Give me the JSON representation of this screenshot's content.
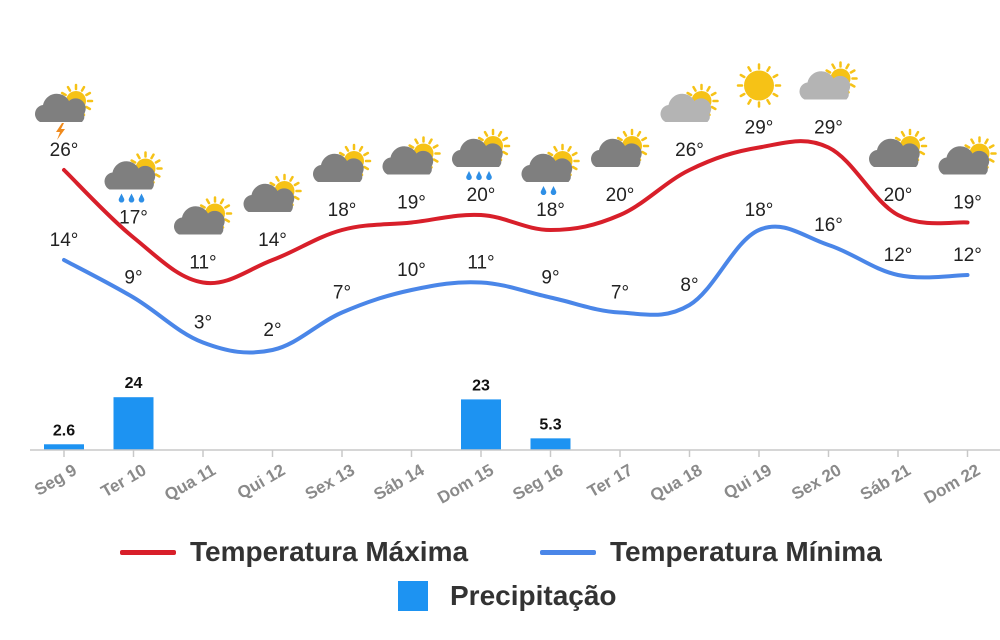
{
  "colors": {
    "max": "#d81f2a",
    "min": "#4a86e8",
    "precip": "#1d93f2",
    "cloud": "#7f7f7f",
    "cloud_light": "#b4b4b4",
    "sun": "#f6c216",
    "rain": "#2e8fe6",
    "lightning": "#f08a1c",
    "axis": "#c8c8c8"
  },
  "chart_data": {
    "type": "line",
    "categories": [
      "Seg 9",
      "Ter 10",
      "Qua 11",
      "Qui 12",
      "Sex 13",
      "Sáb 14",
      "Dom 15",
      "Seg 16",
      "Ter 17",
      "Qua 18",
      "Qui 19",
      "Sex 20",
      "Sáb 21",
      "Dom 22"
    ],
    "series": [
      {
        "name": "Temperatura Máxima",
        "values": [
          26,
          17,
          11,
          14,
          18,
          19,
          20,
          18,
          20,
          26,
          29,
          29,
          20,
          19
        ]
      },
      {
        "name": "Temperatura Mínima",
        "values": [
          14,
          9,
          3,
          2,
          7,
          10,
          11,
          9,
          7,
          8,
          18,
          16,
          12,
          12
        ]
      },
      {
        "name": "Precipitação",
        "type": "bar",
        "values": [
          2.6,
          24,
          null,
          null,
          null,
          null,
          23,
          5.3,
          null,
          null,
          null,
          null,
          null,
          null
        ]
      }
    ],
    "temp_labels_max": [
      "26°",
      "17°",
      "11°",
      "14°",
      "18°",
      "19°",
      "20°",
      "18°",
      "20°",
      "26°",
      "29°",
      "29°",
      "20°",
      "19°"
    ],
    "temp_labels_min": [
      "14°",
      "9°",
      "3°",
      "2°",
      "7°",
      "10°",
      "11°",
      "9°",
      "7°",
      "8°",
      "18°",
      "16°",
      "12°",
      "12°"
    ],
    "precip_labels": [
      "2.6",
      "24",
      "",
      "",
      "",
      "",
      "23",
      "5.3",
      "",
      "",
      "",
      "",
      "",
      ""
    ],
    "weather_icons": [
      "storm-partly-cloudy-icon",
      "rain-partly-cloudy-icon",
      "partly-cloudy-icon",
      "partly-cloudy-icon",
      "partly-cloudy-icon",
      "partly-cloudy-icon",
      "rain-partly-cloudy-icon",
      "rain-partly-cloudy-icon",
      "partly-cloudy-icon",
      "partly-cloudy-light-icon",
      "sun-icon",
      "partly-cloudy-light-icon",
      "partly-cloudy-icon",
      "partly-cloudy-icon"
    ],
    "grid": false,
    "legend_position": "bottom"
  },
  "legend": {
    "max": "Temperatura Máxima",
    "min": "Temperatura Mínima",
    "precip": "Precipitação"
  }
}
